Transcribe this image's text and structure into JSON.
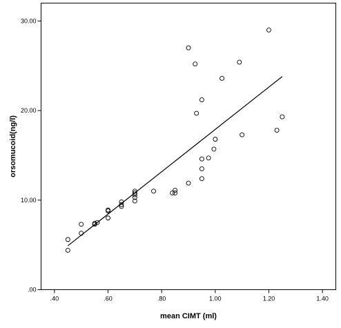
{
  "chart_data": {
    "type": "scatter",
    "title": "",
    "xlabel": "mean CIMT (ml)",
    "ylabel": "orsomucoid(ng/l)",
    "xlim": [
      0.35,
      1.45
    ],
    "ylim": [
      0,
      32
    ],
    "xticks": [
      0.4,
      0.6,
      0.8,
      1.0,
      1.2,
      1.4
    ],
    "xtick_labels": [
      ".40",
      ".60",
      ".80",
      "1.00",
      "1.20",
      "1.40"
    ],
    "yticks": [
      0,
      10,
      20,
      30
    ],
    "ytick_labels": [
      ".00",
      "10.00",
      "20.00",
      "30.00"
    ],
    "grid": false,
    "points": [
      {
        "x": 0.45,
        "y": 4.4
      },
      {
        "x": 0.45,
        "y": 5.6
      },
      {
        "x": 0.5,
        "y": 6.3
      },
      {
        "x": 0.5,
        "y": 7.3
      },
      {
        "x": 0.55,
        "y": 7.3
      },
      {
        "x": 0.55,
        "y": 7.4
      },
      {
        "x": 0.56,
        "y": 7.5
      },
      {
        "x": 0.6,
        "y": 8.0
      },
      {
        "x": 0.6,
        "y": 8.8
      },
      {
        "x": 0.6,
        "y": 8.9
      },
      {
        "x": 0.65,
        "y": 9.3
      },
      {
        "x": 0.65,
        "y": 9.5
      },
      {
        "x": 0.65,
        "y": 9.8
      },
      {
        "x": 0.7,
        "y": 9.9
      },
      {
        "x": 0.7,
        "y": 10.3
      },
      {
        "x": 0.7,
        "y": 10.6
      },
      {
        "x": 0.7,
        "y": 10.8
      },
      {
        "x": 0.7,
        "y": 11.0
      },
      {
        "x": 0.77,
        "y": 11.0
      },
      {
        "x": 0.84,
        "y": 10.8
      },
      {
        "x": 0.85,
        "y": 10.8
      },
      {
        "x": 0.85,
        "y": 11.1
      },
      {
        "x": 0.9,
        "y": 11.9
      },
      {
        "x": 0.95,
        "y": 12.4
      },
      {
        "x": 0.95,
        "y": 13.5
      },
      {
        "x": 0.95,
        "y": 14.6
      },
      {
        "x": 0.975,
        "y": 14.7
      },
      {
        "x": 0.995,
        "y": 15.7
      },
      {
        "x": 1.0,
        "y": 16.8
      },
      {
        "x": 1.1,
        "y": 17.3
      },
      {
        "x": 1.23,
        "y": 17.8
      },
      {
        "x": 1.25,
        "y": 19.3
      },
      {
        "x": 0.93,
        "y": 19.7
      },
      {
        "x": 0.95,
        "y": 21.2
      },
      {
        "x": 1.025,
        "y": 23.6
      },
      {
        "x": 0.925,
        "y": 25.2
      },
      {
        "x": 1.09,
        "y": 25.4
      },
      {
        "x": 0.9,
        "y": 27.0
      },
      {
        "x": 1.2,
        "y": 29.0
      }
    ],
    "fit_line": {
      "x": [
        0.45,
        1.25
      ],
      "y": [
        4.9,
        23.8
      ]
    }
  }
}
